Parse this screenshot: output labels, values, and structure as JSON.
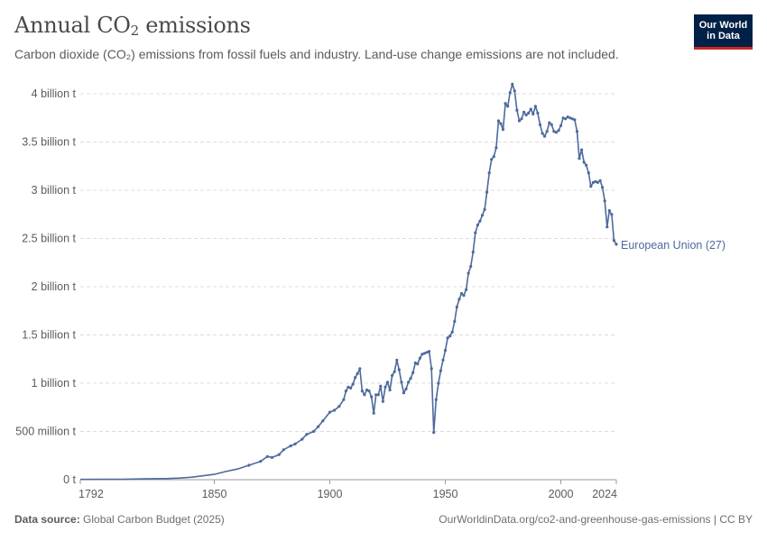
{
  "header": {
    "title_main": "Annual CO",
    "title_sub": "2",
    "title_rest": " emissions",
    "subtitle": "Carbon dioxide (CO₂) emissions from fossil fuels and industry. Land-use change emissions are not included."
  },
  "logo": {
    "line1": "Our World",
    "line2": "in Data"
  },
  "footer": {
    "source_label": "Data source:",
    "source_value": " Global Carbon Budget (2025)",
    "credit": "OurWorldinData.org/co2-and-greenhouse-gas-emissions | CC BY"
  },
  "colors": {
    "series": "#4c6a9c",
    "grid": "#dddddd",
    "axis": "#999999",
    "logo_bg": "#002147",
    "logo_accent": "#ce261e"
  },
  "chart_data": {
    "type": "line",
    "title": "Annual CO₂ emissions",
    "xlabel": "",
    "ylabel": "",
    "xlim": [
      1792,
      2024
    ],
    "ylim": [
      0,
      4000000000
    ],
    "y_ticks": [
      {
        "value": 0,
        "label": "0 t"
      },
      {
        "value": 500000000,
        "label": "500 million t"
      },
      {
        "value": 1000000000,
        "label": "1 billion t"
      },
      {
        "value": 1500000000,
        "label": "1.5 billion t"
      },
      {
        "value": 2000000000,
        "label": "2 billion t"
      },
      {
        "value": 2500000000,
        "label": "2.5 billion t"
      },
      {
        "value": 3000000000,
        "label": "3 billion t"
      },
      {
        "value": 3500000000,
        "label": "3.5 billion t"
      },
      {
        "value": 4000000000,
        "label": "4 billion t"
      }
    ],
    "x_ticks": [
      {
        "value": 1792,
        "label": "1792"
      },
      {
        "value": 1850,
        "label": "1850"
      },
      {
        "value": 1900,
        "label": "1900"
      },
      {
        "value": 1950,
        "label": "1950"
      },
      {
        "value": 2000,
        "label": "2000"
      },
      {
        "value": 2024,
        "label": "2024"
      }
    ],
    "grid": true,
    "series": [
      {
        "name": "European Union (27)",
        "unit": "million t",
        "points": [
          [
            1792,
            3
          ],
          [
            1800,
            4
          ],
          [
            1810,
            5
          ],
          [
            1820,
            8
          ],
          [
            1830,
            12
          ],
          [
            1835,
            17
          ],
          [
            1840,
            25
          ],
          [
            1845,
            40
          ],
          [
            1850,
            55
          ],
          [
            1855,
            85
          ],
          [
            1860,
            110
          ],
          [
            1865,
            150
          ],
          [
            1870,
            190
          ],
          [
            1873,
            240
          ],
          [
            1875,
            230
          ],
          [
            1878,
            260
          ],
          [
            1880,
            310
          ],
          [
            1883,
            350
          ],
          [
            1885,
            370
          ],
          [
            1888,
            420
          ],
          [
            1890,
            470
          ],
          [
            1893,
            500
          ],
          [
            1895,
            550
          ],
          [
            1897,
            610
          ],
          [
            1900,
            700
          ],
          [
            1902,
            720
          ],
          [
            1904,
            760
          ],
          [
            1906,
            830
          ],
          [
            1907,
            920
          ],
          [
            1908,
            960
          ],
          [
            1909,
            950
          ],
          [
            1910,
            990
          ],
          [
            1911,
            1060
          ],
          [
            1912,
            1100
          ],
          [
            1913,
            1150
          ],
          [
            1914,
            920
          ],
          [
            1915,
            880
          ],
          [
            1916,
            930
          ],
          [
            1917,
            920
          ],
          [
            1918,
            860
          ],
          [
            1919,
            690
          ],
          [
            1920,
            880
          ],
          [
            1921,
            880
          ],
          [
            1922,
            970
          ],
          [
            1923,
            810
          ],
          [
            1924,
            960
          ],
          [
            1925,
            1010
          ],
          [
            1926,
            930
          ],
          [
            1927,
            1080
          ],
          [
            1928,
            1120
          ],
          [
            1929,
            1240
          ],
          [
            1930,
            1140
          ],
          [
            1931,
            1010
          ],
          [
            1932,
            900
          ],
          [
            1933,
            940
          ],
          [
            1934,
            1010
          ],
          [
            1935,
            1050
          ],
          [
            1936,
            1110
          ],
          [
            1937,
            1210
          ],
          [
            1938,
            1200
          ],
          [
            1939,
            1260
          ],
          [
            1940,
            1300
          ],
          [
            1941,
            1310
          ],
          [
            1942,
            1320
          ],
          [
            1943,
            1330
          ],
          [
            1944,
            1150
          ],
          [
            1945,
            490
          ],
          [
            1946,
            830
          ],
          [
            1947,
            1000
          ],
          [
            1948,
            1130
          ],
          [
            1949,
            1240
          ],
          [
            1950,
            1340
          ],
          [
            1951,
            1470
          ],
          [
            1952,
            1490
          ],
          [
            1953,
            1530
          ],
          [
            1954,
            1640
          ],
          [
            1955,
            1790
          ],
          [
            1956,
            1870
          ],
          [
            1957,
            1930
          ],
          [
            1958,
            1910
          ],
          [
            1959,
            1970
          ],
          [
            1960,
            2140
          ],
          [
            1961,
            2210
          ],
          [
            1962,
            2360
          ],
          [
            1963,
            2560
          ],
          [
            1964,
            2640
          ],
          [
            1965,
            2680
          ],
          [
            1966,
            2740
          ],
          [
            1967,
            2800
          ],
          [
            1968,
            2980
          ],
          [
            1969,
            3180
          ],
          [
            1970,
            3320
          ],
          [
            1971,
            3350
          ],
          [
            1972,
            3440
          ],
          [
            1973,
            3720
          ],
          [
            1974,
            3690
          ],
          [
            1975,
            3630
          ],
          [
            1976,
            3900
          ],
          [
            1977,
            3870
          ],
          [
            1978,
            4010
          ],
          [
            1979,
            4100
          ],
          [
            1980,
            4030
          ],
          [
            1981,
            3830
          ],
          [
            1982,
            3720
          ],
          [
            1983,
            3740
          ],
          [
            1984,
            3810
          ],
          [
            1985,
            3780
          ],
          [
            1986,
            3800
          ],
          [
            1987,
            3840
          ],
          [
            1988,
            3790
          ],
          [
            1989,
            3870
          ],
          [
            1990,
            3800
          ],
          [
            1991,
            3680
          ],
          [
            1992,
            3590
          ],
          [
            1993,
            3560
          ],
          [
            1994,
            3610
          ],
          [
            1995,
            3700
          ],
          [
            1996,
            3680
          ],
          [
            1997,
            3610
          ],
          [
            1998,
            3600
          ],
          [
            1999,
            3620
          ],
          [
            2000,
            3670
          ],
          [
            2001,
            3750
          ],
          [
            2002,
            3740
          ],
          [
            2003,
            3760
          ],
          [
            2004,
            3750
          ],
          [
            2005,
            3740
          ],
          [
            2006,
            3730
          ],
          [
            2007,
            3610
          ],
          [
            2008,
            3330
          ],
          [
            2009,
            3420
          ],
          [
            2010,
            3290
          ],
          [
            2011,
            3260
          ],
          [
            2012,
            3180
          ],
          [
            2013,
            3040
          ],
          [
            2014,
            3080
          ],
          [
            2015,
            3090
          ],
          [
            2016,
            3080
          ],
          [
            2017,
            3100
          ],
          [
            2018,
            3030
          ],
          [
            2019,
            2890
          ],
          [
            2020,
            2620
          ],
          [
            2021,
            2790
          ],
          [
            2022,
            2750
          ],
          [
            2023,
            2480
          ],
          [
            2024,
            2440
          ]
        ]
      }
    ]
  }
}
